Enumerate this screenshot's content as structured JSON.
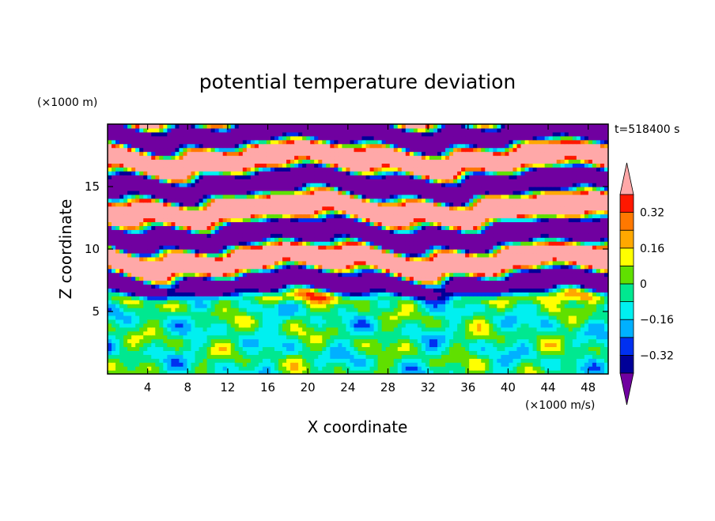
{
  "chart_data": {
    "type": "heatmap",
    "title": "potential temperature deviation",
    "time_label": "t=518400 s",
    "xlabel": "X coordinate",
    "ylabel": "Z coordinate",
    "x_unit": "(×1000 m/s)",
    "y_unit": "(×1000 m)",
    "xlim": [
      0,
      50
    ],
    "ylim": [
      0,
      20
    ],
    "x_ticks": [
      4,
      8,
      12,
      16,
      20,
      24,
      28,
      32,
      36,
      40,
      44,
      48
    ],
    "y_ticks": [
      5,
      10,
      15
    ],
    "colorbar": {
      "levels": [
        -0.4,
        -0.32,
        -0.24,
        -0.16,
        -0.08,
        0,
        0.08,
        0.16,
        0.24,
        0.32,
        0.4
      ],
      "labels": [
        "0.32",
        "0.16",
        "0",
        "−0.16",
        "−0.32"
      ],
      "label_values": [
        0.32,
        0.16,
        0,
        -0.16,
        -0.32
      ],
      "colors": [
        "#000098",
        "#0030f0",
        "#00b0ff",
        "#00f0f0",
        "#00e890",
        "#60e000",
        "#ffff00",
        "#ffa800",
        "#ff7800",
        "#ff1800"
      ],
      "over_color": "#ffa8a8",
      "under_color": "#7000a0",
      "extend": "both"
    },
    "field_description_layers": [
      {
        "z_range": [
          0,
          6.5
        ],
        "regime": "mixed near-zero eddies"
      },
      {
        "z_range": [
          6.5,
          20
        ],
        "regime": "banded extremes above +0.4 and below -0.4"
      }
    ]
  }
}
